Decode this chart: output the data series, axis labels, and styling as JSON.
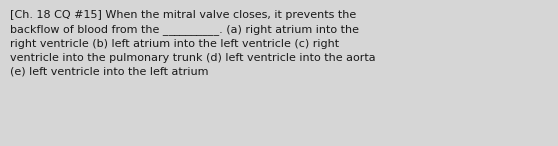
{
  "text": "[Ch. 18 CQ #15] When the mitral valve closes, it prevents the\nbackflow of blood from the __________. (a) right atrium into the\nright ventricle (b) left atrium into the left ventricle (c) right\nventricle into the pulmonary trunk (d) left ventricle into the aorta\n(e) left ventricle into the left atrium",
  "background_color": "#d6d6d6",
  "text_color": "#1a1a1a",
  "font_size": 8.0,
  "fig_width": 5.58,
  "fig_height": 1.46,
  "dpi": 100
}
